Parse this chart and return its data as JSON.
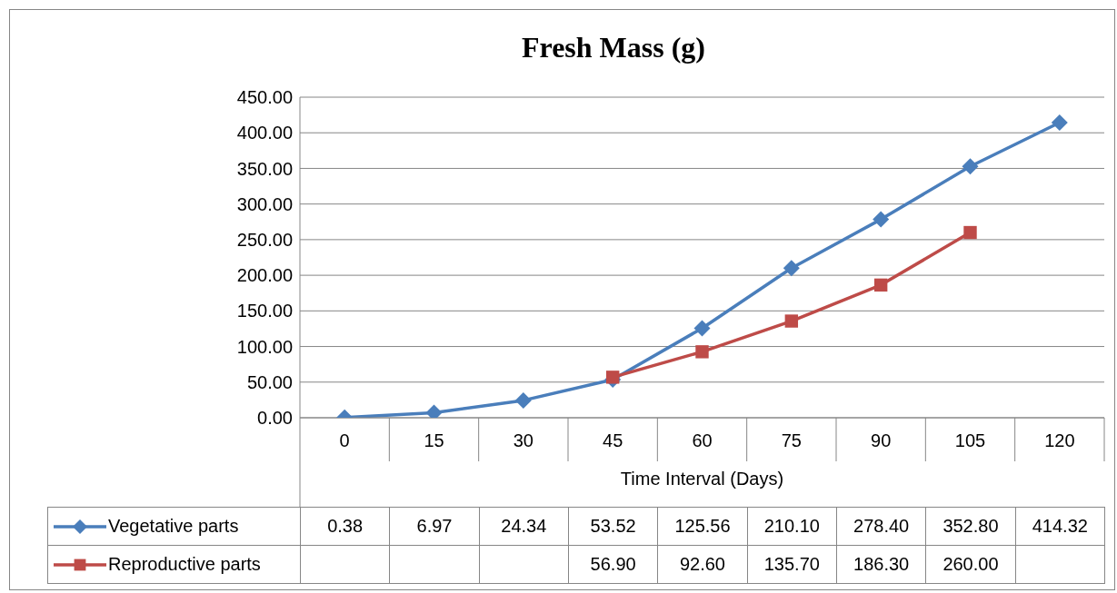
{
  "chart_data": {
    "type": "line",
    "title": "Fresh Mass (g)",
    "xlabel": "Time Interval (Days)",
    "categories": [
      "0",
      "15",
      "30",
      "45",
      "60",
      "75",
      "90",
      "105",
      "120"
    ],
    "series": [
      {
        "name": "Vegetative parts",
        "color": "#4a7ebb",
        "marker": "diamond",
        "values": [
          0.38,
          6.97,
          24.34,
          53.52,
          125.56,
          210.1,
          278.4,
          352.8,
          414.32
        ],
        "value_labels": [
          "0.38",
          "6.97",
          "24.34",
          "53.52",
          "125.56",
          "210.10",
          "278.40",
          "352.80",
          "414.32"
        ]
      },
      {
        "name": "Reproductive parts",
        "color": "#be4b48",
        "marker": "square",
        "values": [
          null,
          null,
          null,
          56.9,
          92.6,
          135.7,
          186.3,
          260,
          null
        ],
        "value_labels": [
          null,
          null,
          null,
          "56.90",
          "92.60",
          "135.70",
          "186.30",
          "260.00",
          null
        ]
      }
    ],
    "ylim": [
      0,
      450
    ],
    "yticks": [
      {
        "value": 0,
        "label": "0.00"
      },
      {
        "value": 50,
        "label": "50.00"
      },
      {
        "value": 100,
        "label": "100.00"
      },
      {
        "value": 150,
        "label": "150.00"
      },
      {
        "value": 200,
        "label": "200.00"
      },
      {
        "value": 250,
        "label": "250.00"
      },
      {
        "value": 300,
        "label": "300.00"
      },
      {
        "value": 350,
        "label": "350.00"
      },
      {
        "value": 400,
        "label": "400.00"
      },
      {
        "value": 450,
        "label": "450.00"
      }
    ],
    "grid": "y",
    "legend": "bottom"
  }
}
